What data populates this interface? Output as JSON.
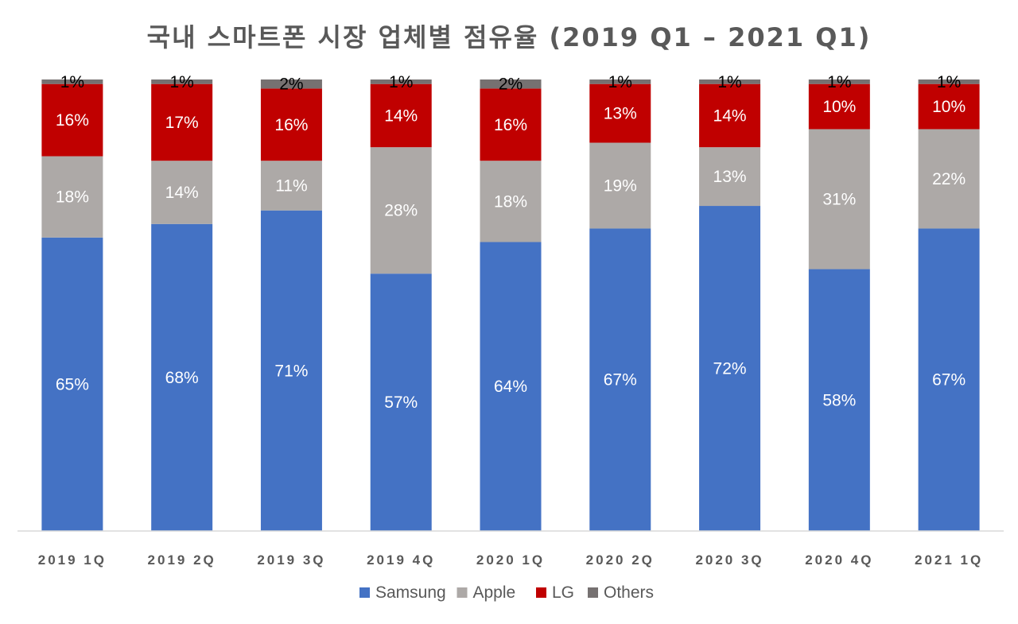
{
  "chart_data": {
    "type": "bar",
    "stacked": true,
    "title": "국내 스마트폰 시장 업체별 점유율 (2019 Q1 – 2021 Q1)",
    "categories": [
      "2019 1Q",
      "2019 2Q",
      "2019 3Q",
      "2019 4Q",
      "2020 1Q",
      "2020 2Q",
      "2020 3Q",
      "2020 4Q",
      "2021 1Q"
    ],
    "series": [
      {
        "name": "Samsung",
        "color": "#4472C4",
        "label_color": "#FFFFFF",
        "values": [
          65,
          68,
          71,
          57,
          64,
          67,
          72,
          58,
          67
        ]
      },
      {
        "name": "Apple",
        "color": "#ADA9A7",
        "label_color": "#FFFFFF",
        "values": [
          18,
          14,
          11,
          28,
          18,
          19,
          13,
          31,
          22
        ]
      },
      {
        "name": "LG",
        "color": "#C00000",
        "label_color": "#FFFFFF",
        "values": [
          16,
          17,
          16,
          14,
          16,
          13,
          14,
          10,
          10
        ]
      },
      {
        "name": "Others",
        "color": "#767171",
        "label_color": "#000000",
        "values": [
          1,
          1,
          2,
          1,
          2,
          1,
          1,
          1,
          1
        ]
      }
    ],
    "label_suffix": "%",
    "ylim": [
      0,
      100
    ],
    "grid": false,
    "legend": "bottom"
  }
}
